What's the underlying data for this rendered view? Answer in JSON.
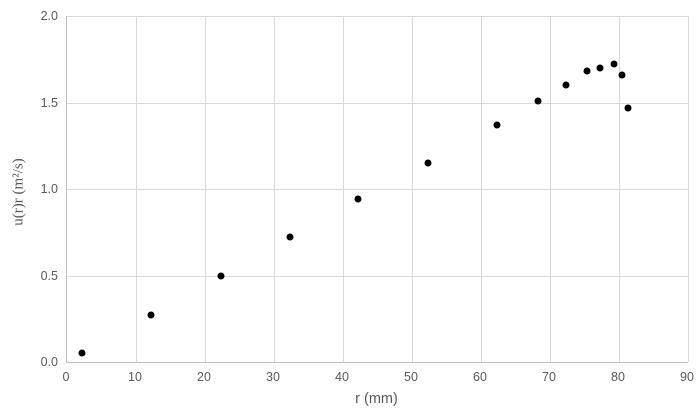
{
  "chart_data": {
    "type": "scatter",
    "title": "",
    "xlabel": "r (mm)",
    "ylabel": "u(r)r (m²/s)",
    "xlim": [
      0,
      90
    ],
    "ylim": [
      0,
      2.0
    ],
    "x_ticks": [
      0,
      10,
      20,
      30,
      40,
      50,
      60,
      70,
      80,
      90
    ],
    "x_tick_labels": [
      "0",
      "10",
      "20",
      "30",
      "40",
      "50",
      "60",
      "70",
      "80",
      "90"
    ],
    "y_ticks": [
      0,
      0.5,
      1.0,
      1.5,
      2.0
    ],
    "y_tick_labels": [
      "0.0",
      "0.5",
      "1.0",
      "1.5",
      "2.0"
    ],
    "grid": true,
    "legend": "none",
    "series": [
      {
        "name": "u(r)r",
        "marker": "circle",
        "color": "#000000",
        "points": [
          [
            2.2,
            0.05
          ],
          [
            12.2,
            0.27
          ],
          [
            22.3,
            0.5
          ],
          [
            32.3,
            0.72
          ],
          [
            42.2,
            0.94
          ],
          [
            52.3,
            1.15
          ],
          [
            62.3,
            1.37
          ],
          [
            68.3,
            1.51
          ],
          [
            72.3,
            1.6
          ],
          [
            75.4,
            1.68
          ],
          [
            77.3,
            1.7
          ],
          [
            79.3,
            1.72
          ],
          [
            80.4,
            1.66
          ],
          [
            81.3,
            1.47
          ]
        ]
      }
    ]
  },
  "colors": {
    "background": "#FFFFFF",
    "gridline": "#D9D9D9",
    "axis_line": "#BFBFBF",
    "tick_label": "#595959",
    "axis_title": "#595959",
    "marker": "#000000"
  }
}
